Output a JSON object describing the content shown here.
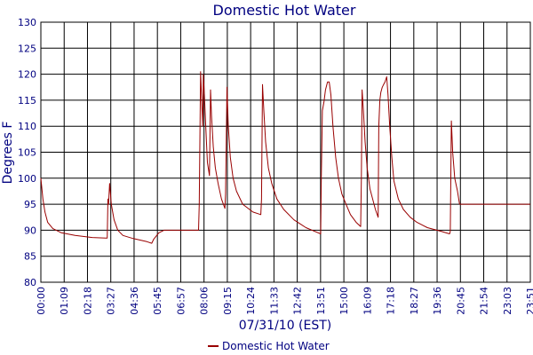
{
  "chart_data": {
    "type": "line",
    "title": "Domestic Hot Water",
    "xlabel": "07/31/10 (EST)",
    "ylabel": "Degrees F",
    "ylim": [
      80,
      130
    ],
    "yticks": [
      "80",
      "85",
      "90",
      "95",
      "100",
      "105",
      "110",
      "115",
      "120",
      "125",
      "130"
    ],
    "xticks": [
      "00:00",
      "01:09",
      "02:18",
      "03:27",
      "04:36",
      "05:45",
      "06:57",
      "08:06",
      "09:15",
      "10:24",
      "11:33",
      "12:42",
      "13:51",
      "15:00",
      "16:09",
      "17:18",
      "18:27",
      "19:36",
      "20:45",
      "21:54",
      "23:03",
      "23:51"
    ],
    "grid": true,
    "legend_position": "bottom",
    "series": [
      {
        "name": "Domestic Hot Water",
        "color": "#990000",
        "x_unit": "minutes since 00:00",
        "points": [
          [
            0,
            100
          ],
          [
            6,
            96
          ],
          [
            12,
            93.5
          ],
          [
            20,
            91.5
          ],
          [
            35,
            90.3
          ],
          [
            60,
            89.5
          ],
          [
            100,
            89
          ],
          [
            150,
            88.6
          ],
          [
            190,
            88.5
          ],
          [
            194,
            88.5
          ],
          [
            196,
            96
          ],
          [
            198,
            95
          ],
          [
            201,
            99
          ],
          [
            206,
            95
          ],
          [
            214,
            92
          ],
          [
            225,
            90
          ],
          [
            240,
            89
          ],
          [
            270,
            88.4
          ],
          [
            310,
            87.8
          ],
          [
            324,
            87.5
          ],
          [
            330,
            88.3
          ],
          [
            345,
            89.5
          ],
          [
            360,
            90
          ],
          [
            380,
            90
          ],
          [
            440,
            90
          ],
          [
            461,
            90
          ],
          [
            463,
            95
          ],
          [
            467,
            120.5
          ],
          [
            470,
            115
          ],
          [
            473,
            110
          ],
          [
            475,
            120
          ],
          [
            478,
            116
          ],
          [
            482,
            110
          ],
          [
            487,
            103
          ],
          [
            493,
            100.5
          ],
          [
            496,
            117
          ],
          [
            499,
            112
          ],
          [
            504,
            106
          ],
          [
            510,
            102
          ],
          [
            518,
            99
          ],
          [
            528,
            96
          ],
          [
            538,
            94.2
          ],
          [
            540,
            97
          ],
          [
            544,
            117.5
          ],
          [
            548,
            110
          ],
          [
            554,
            104
          ],
          [
            562,
            100
          ],
          [
            572,
            97.5
          ],
          [
            590,
            95
          ],
          [
            620,
            93.5
          ],
          [
            643,
            93
          ],
          [
            645,
            96
          ],
          [
            648,
            118
          ],
          [
            652,
            113
          ],
          [
            657,
            107
          ],
          [
            665,
            102
          ],
          [
            675,
            99
          ],
          [
            690,
            96
          ],
          [
            710,
            94
          ],
          [
            740,
            92
          ],
          [
            775,
            90.5
          ],
          [
            800,
            89.8
          ],
          [
            818,
            89.3
          ],
          [
            820,
            100
          ],
          [
            823,
            113
          ],
          [
            828,
            114.8
          ],
          [
            832,
            117
          ],
          [
            838,
            118.5
          ],
          [
            843,
            118.5
          ],
          [
            848,
            116
          ],
          [
            854,
            110
          ],
          [
            862,
            104
          ],
          [
            870,
            100
          ],
          [
            880,
            97
          ],
          [
            892,
            95
          ],
          [
            905,
            93
          ],
          [
            922,
            91.5
          ],
          [
            935,
            90.7
          ],
          [
            937,
            100
          ],
          [
            939,
            117
          ],
          [
            943,
            113
          ],
          [
            948,
            107
          ],
          [
            954,
            102
          ],
          [
            962,
            98
          ],
          [
            970,
            96
          ],
          [
            978,
            94
          ],
          [
            986,
            92.5
          ],
          [
            988,
            110
          ],
          [
            991,
            115
          ],
          [
            994,
            116.5
          ],
          [
            998,
            117.5
          ],
          [
            1002,
            118
          ],
          [
            1006,
            118.5
          ],
          [
            1011,
            119.5
          ],
          [
            1015,
            116
          ],
          [
            1020,
            110
          ],
          [
            1026,
            104
          ],
          [
            1032,
            99.5
          ],
          [
            1045,
            96
          ],
          [
            1060,
            94
          ],
          [
            1080,
            92.5
          ],
          [
            1100,
            91.5
          ],
          [
            1130,
            90.5
          ],
          [
            1170,
            89.8
          ],
          [
            1195,
            89.3
          ],
          [
            1197,
            89.8
          ],
          [
            1200,
            111
          ],
          [
            1204,
            105
          ],
          [
            1210,
            100
          ],
          [
            1218,
            97.5
          ],
          [
            1224,
            95
          ],
          [
            1431,
            95
          ]
        ]
      }
    ]
  }
}
